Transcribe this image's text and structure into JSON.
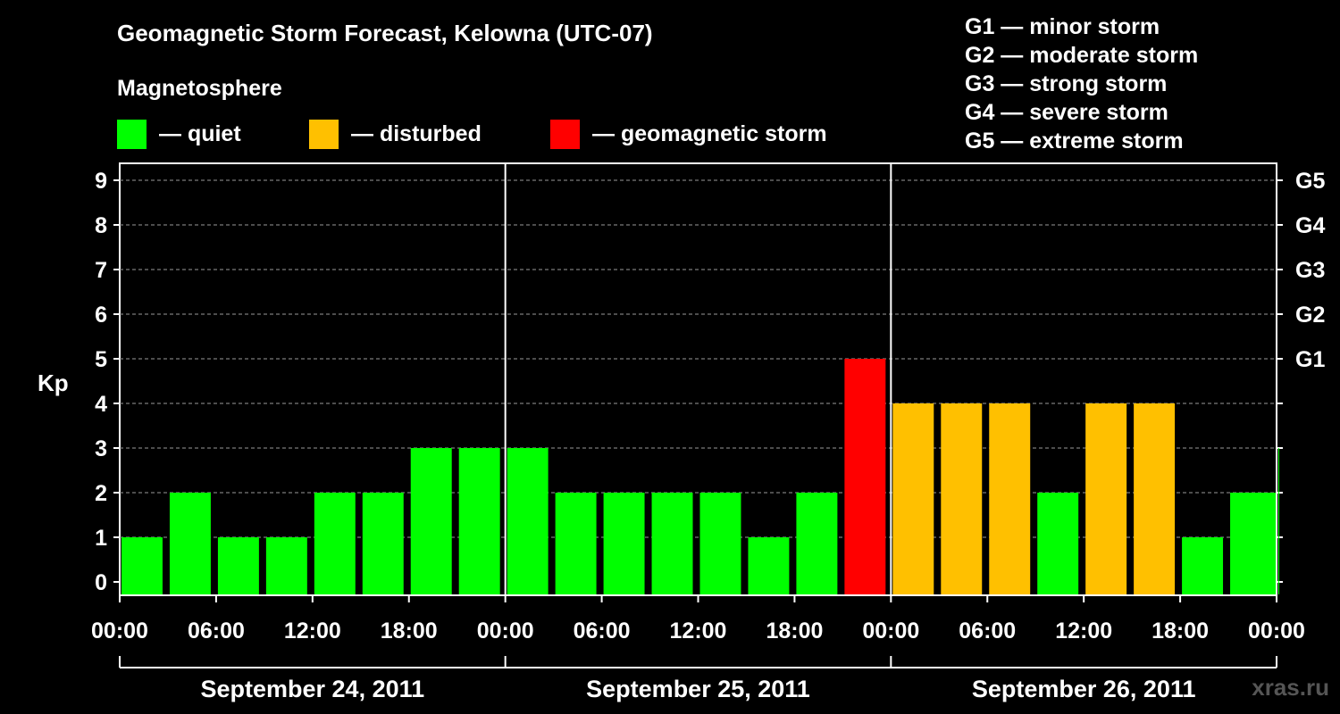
{
  "title": "Geomagnetic Storm Forecast, Kelowna (UTC-07)",
  "legend": {
    "heading": "Magnetosphere",
    "items": [
      {
        "label": "— quiet",
        "color": "#00ff00"
      },
      {
        "label": "— disturbed",
        "color": "#ffc000"
      },
      {
        "label": "— geomagnetic storm",
        "color": "#ff0000"
      }
    ]
  },
  "storm_levels": [
    "G1 — minor storm",
    "G2 — moderate storm",
    "G3 — strong storm",
    "G4 — severe storm",
    "G5 — extreme storm"
  ],
  "watermark": "xras.ru",
  "chart_data": {
    "type": "bar",
    "ylabel": "Kp",
    "ylim": [
      0,
      9
    ],
    "yticks": [
      "0",
      "1",
      "2",
      "3",
      "4",
      "5",
      "6",
      "7",
      "8",
      "9"
    ],
    "right_axis_labels": [
      {
        "kp": 5,
        "label": "G1"
      },
      {
        "kp": 6,
        "label": "G2"
      },
      {
        "kp": 7,
        "label": "G3"
      },
      {
        "kp": 8,
        "label": "G4"
      },
      {
        "kp": 9,
        "label": "G5"
      }
    ],
    "x_tick_labels": [
      "00:00",
      "06:00",
      "12:00",
      "18:00",
      "00:00",
      "06:00",
      "12:00",
      "18:00",
      "00:00",
      "06:00",
      "12:00",
      "18:00",
      "00:00"
    ],
    "days": [
      "September 24, 2011",
      "September 25, 2011",
      "September 26, 2011"
    ],
    "bar_interval_hours": 3,
    "series": [
      {
        "start_hours": [
          0,
          3,
          6,
          9,
          12,
          15,
          18,
          21,
          24,
          27,
          30,
          33,
          36,
          39,
          42,
          45,
          48,
          51,
          54,
          57,
          60,
          63,
          66,
          69,
          72
        ],
        "values": [
          1,
          2,
          1,
          1,
          2,
          2,
          3,
          3,
          3,
          2,
          2,
          2,
          2,
          1,
          2,
          5,
          4,
          4,
          4,
          2,
          4,
          4,
          1,
          2,
          3
        ],
        "status": [
          "quiet",
          "quiet",
          "quiet",
          "quiet",
          "quiet",
          "quiet",
          "quiet",
          "quiet",
          "quiet",
          "quiet",
          "quiet",
          "quiet",
          "quiet",
          "quiet",
          "quiet",
          "storm",
          "disturbed",
          "disturbed",
          "disturbed",
          "quiet",
          "disturbed",
          "disturbed",
          "quiet",
          "quiet",
          "quiet"
        ]
      }
    ],
    "colors": {
      "quiet": "#00ff00",
      "disturbed": "#ffc000",
      "storm": "#ff0000"
    },
    "grid": "dashed horizontal"
  }
}
